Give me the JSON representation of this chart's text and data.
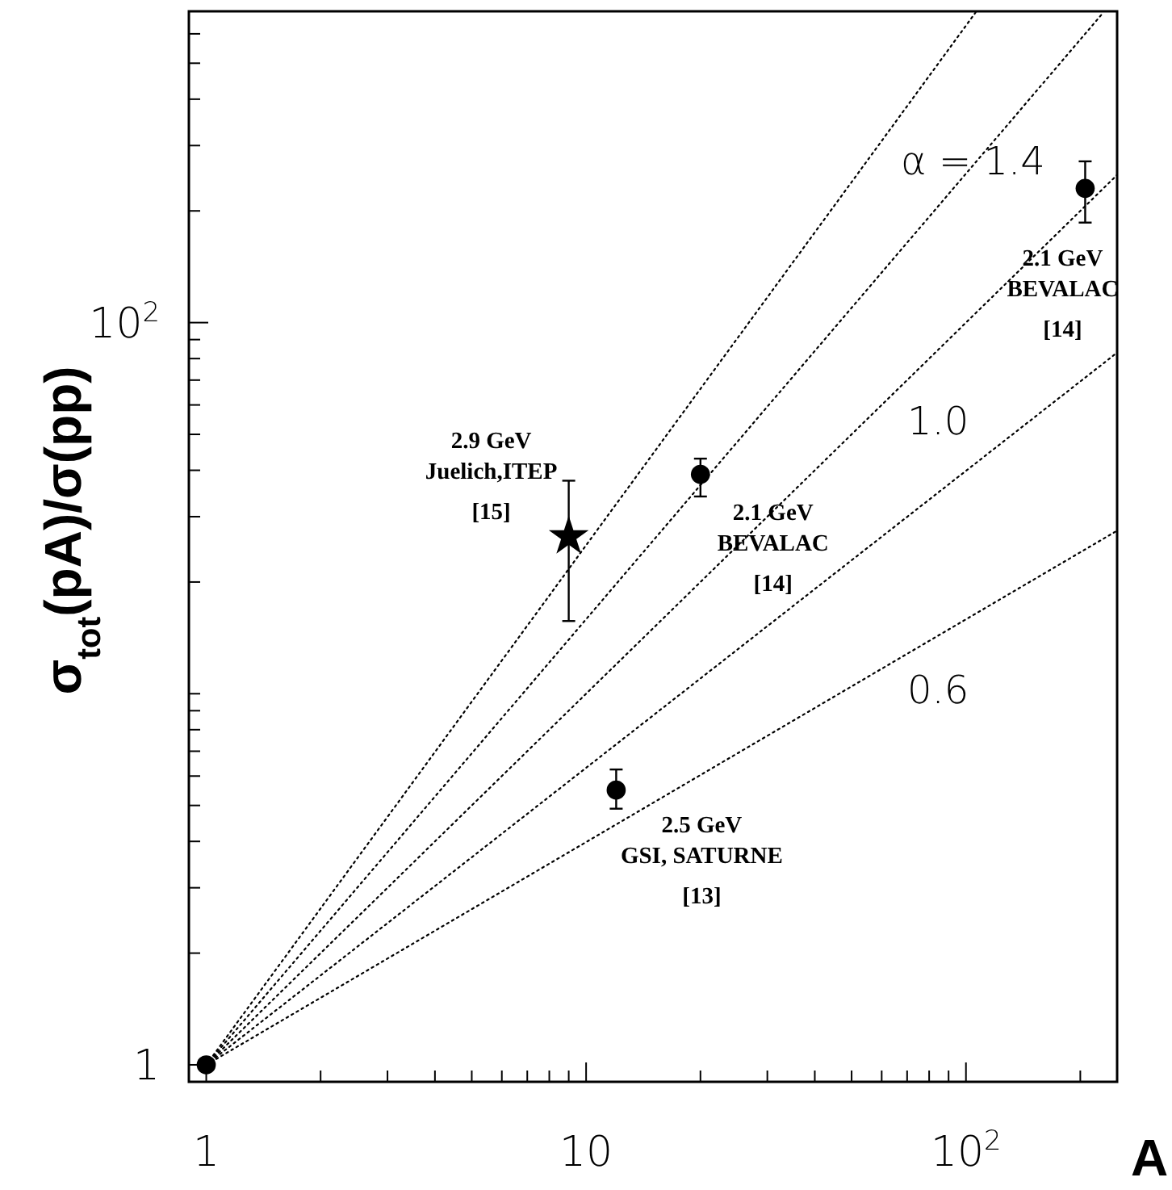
{
  "chart_data": {
    "type": "scatter",
    "xlabel": "A",
    "ylabel": "σ$_{tot}$(pA)/σ(pp)",
    "log": "xy",
    "grid": false,
    "xlim": [
      0.9,
      250
    ],
    "ylim": [
      0.9,
      690
    ],
    "xticks": [
      1,
      {
        "value": 2,
        "label": null
      },
      {
        "value": 3,
        "label": null
      },
      {
        "value": 4,
        "label": null
      },
      {
        "value": 5,
        "label": null
      },
      {
        "value": 6,
        "label": null
      },
      {
        "value": 7,
        "label": null
      },
      {
        "value": 8,
        "label": null
      },
      {
        "value": 9,
        "label": null
      },
      10,
      {
        "value": 20,
        "label": null
      },
      {
        "value": 30,
        "label": null
      },
      {
        "value": 40,
        "label": null
      },
      {
        "value": 50,
        "label": null
      },
      {
        "value": 60,
        "label": null
      },
      {
        "value": 70,
        "label": null
      },
      {
        "value": 80,
        "label": null
      },
      {
        "value": 90,
        "label": null
      },
      {
        "value": 100,
        "label": "10$^{2}$"
      },
      {
        "value": 200,
        "label": null
      }
    ],
    "yticks": [
      1,
      {
        "value": 2,
        "label": null
      },
      {
        "value": 3,
        "label": null
      },
      {
        "value": 4,
        "label": null
      },
      {
        "value": 5,
        "label": null
      },
      {
        "value": 6,
        "label": null
      },
      {
        "value": 7,
        "label": null
      },
      {
        "value": 8,
        "label": null
      },
      {
        "value": 9,
        "label": null
      },
      {
        "value": 10,
        "label": null
      },
      {
        "value": 20,
        "label": null
      },
      {
        "value": 30,
        "label": null
      },
      {
        "value": 40,
        "label": null
      },
      {
        "value": 50,
        "label": null
      },
      {
        "value": 60,
        "label": null
      },
      {
        "value": 70,
        "label": null
      },
      {
        "value": 80,
        "label": null
      },
      {
        "value": 90,
        "label": null
      },
      {
        "value": 100,
        "label": "10$^{2}$"
      },
      {
        "value": 200,
        "label": null
      },
      {
        "value": 300,
        "label": null
      },
      {
        "value": 400,
        "label": null
      },
      {
        "value": 500,
        "label": null
      },
      {
        "value": 600,
        "label": null
      }
    ],
    "series": [
      {
        "type": "line",
        "name": "α = 1.4",
        "color": "#000000",
        "line_style": "dotted",
        "marker": "none",
        "x": [
          1,
          106
        ],
        "values": [
          1,
          685
        ]
      },
      {
        "type": "line",
        "color": "#000000",
        "line_style": "dotted",
        "marker": "none",
        "x": [
          1,
          230
        ],
        "values": [
          1,
          685
        ]
      },
      {
        "type": "line",
        "name": "1.0",
        "color": "#000000",
        "line_style": "dotted",
        "marker": "none",
        "x": [
          1,
          250
        ],
        "values": [
          1,
          250
        ]
      },
      {
        "type": "line",
        "color": "#000000",
        "line_style": "dotted",
        "marker": "none",
        "x": [
          1,
          250
        ],
        "values": [
          1,
          83
        ]
      },
      {
        "type": "line",
        "name": "0.6",
        "color": "#000000",
        "line_style": "dotted",
        "marker": "none",
        "x": [
          1,
          250
        ],
        "values": [
          1,
          27.5
        ]
      },
      {
        "color": "#000000",
        "marker": "circle",
        "x": [
          1,
          20,
          12,
          206
        ],
        "values": [
          1,
          39,
          5.5,
          230
        ],
        "errors": [
          null,
          [
            34,
            43
          ],
          [
            4.9,
            6.25
          ],
          [
            186,
            272
          ]
        ]
      },
      {
        "color": "#000000",
        "marker": "star",
        "x": [
          9
        ],
        "values": [
          26.5
        ],
        "errors": [
          [
            15.7,
            37.5
          ]
        ]
      }
    ],
    "annotations": [
      {
        "text": "2.9 GeV\nJuelich,ITEP\n[15]",
        "x": 9,
        "y": 26.5
      },
      {
        "text": "2.1 GeV\nBEVALAC\n[14]",
        "x": 20,
        "y": 39
      },
      {
        "text": "2.1 GeV\nBEVALAC\n[14]",
        "x": 206,
        "y": 230
      },
      {
        "text": "2.5 GeV\nGSI, SATURNE\n[13]",
        "x": 12,
        "y": 5.5
      }
    ]
  }
}
